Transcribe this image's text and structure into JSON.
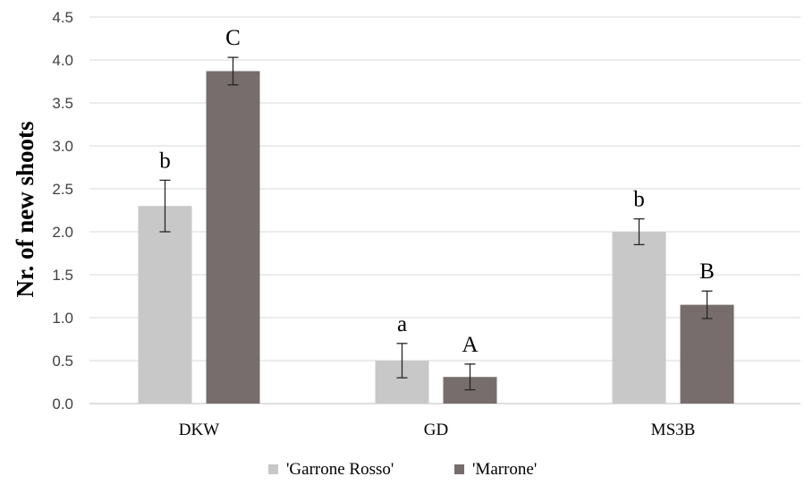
{
  "chart_data": {
    "type": "bar",
    "title": "",
    "xlabel": "",
    "ylabel": "Nr. of new shoots",
    "ylim": [
      0,
      4.5
    ],
    "ytick_step": 0.5,
    "ytick_labels": [
      "0.0",
      "0.5",
      "1.0",
      "1.5",
      "2.0",
      "2.5",
      "3.0",
      "3.5",
      "4.0",
      "4.5"
    ],
    "grid": true,
    "legend_position": "bottom",
    "categories": [
      "DKW",
      "GD",
      "MS3B"
    ],
    "series": [
      {
        "name": "'Garrone Rosso'",
        "color": "#c9c8c8",
        "values": [
          2.3,
          0.5,
          2.0
        ],
        "errors": [
          0.3,
          0.2,
          0.15
        ],
        "significance": [
          "b",
          "a",
          "b"
        ]
      },
      {
        "name": "'Marrone'",
        "color": "#776d6d",
        "values": [
          3.87,
          0.31,
          1.15
        ],
        "errors": [
          0.16,
          0.15,
          0.16
        ],
        "significance": [
          "C",
          "A",
          "B"
        ]
      }
    ]
  }
}
